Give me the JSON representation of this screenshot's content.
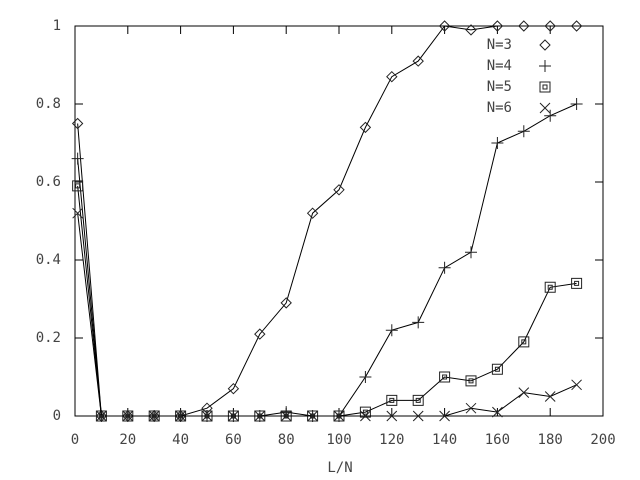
{
  "chart_data": {
    "type": "linespoints",
    "xlabel": "L/N",
    "xlim": [
      0,
      200
    ],
    "xticks": [
      0,
      20,
      40,
      60,
      80,
      100,
      120,
      140,
      160,
      180,
      200
    ],
    "ylim": [
      0,
      1
    ],
    "yticks": [
      0,
      0.2,
      0.4,
      0.6,
      0.8,
      1
    ],
    "legend": "top-right",
    "x": [
      1,
      10,
      20,
      30,
      40,
      50,
      60,
      70,
      80,
      90,
      100,
      110,
      120,
      130,
      140,
      150,
      160,
      170,
      180,
      190
    ],
    "series": [
      {
        "name": "N=3",
        "color": "#000000",
        "marker": "diamond",
        "values": [
          0.75,
          0,
          0,
          0,
          0,
          0.02,
          0.07,
          0.21,
          0.29,
          0.52,
          0.58,
          0.74,
          0.87,
          0.91,
          1.0,
          0.99,
          1.0,
          1.0,
          1.0,
          1.0
        ]
      },
      {
        "name": "N=4",
        "color": "#000000",
        "marker": "plus",
        "values": [
          0.66,
          0,
          0,
          0,
          0,
          0,
          0,
          0,
          0.01,
          0,
          0,
          0.1,
          0.22,
          0.24,
          0.38,
          0.42,
          0.7,
          0.73,
          0.77,
          0.8
        ]
      },
      {
        "name": "N=5",
        "color": "#000000",
        "marker": "square",
        "values": [
          0.59,
          0,
          0,
          0,
          0,
          0,
          0,
          0,
          0,
          0,
          0,
          0.01,
          0.04,
          0.04,
          0.1,
          0.09,
          0.12,
          0.19,
          0.33,
          0.34
        ]
      },
      {
        "name": "N=6",
        "color": "#000000",
        "marker": "cross",
        "values": [
          0.52,
          0,
          0,
          0,
          0,
          0,
          0,
          0,
          0,
          0,
          0,
          0,
          0,
          0,
          0,
          0.02,
          0.01,
          0.06,
          0.05,
          0.08
        ]
      }
    ]
  }
}
